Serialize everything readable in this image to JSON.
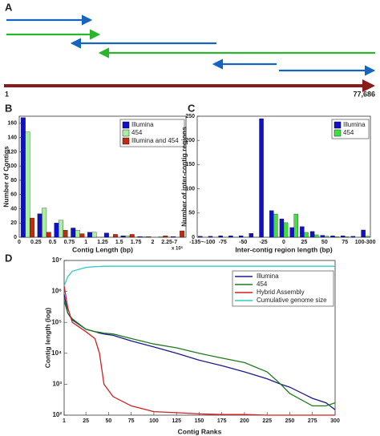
{
  "panel_a": {
    "letter": "A",
    "start_label": "1",
    "end_label": "77,686"
  },
  "chart_data": [
    {
      "type": "bar",
      "letter": "B",
      "x_label": "Contig Length (bp)",
      "y_label": "Number of Contigs",
      "x_multiplier": "x 10⁵",
      "categories": [
        "0",
        "0.25",
        "0.5",
        "0.75",
        "1",
        "1.25",
        "1.5",
        "1.75",
        "2",
        "2.25-7"
      ],
      "series": [
        {
          "name": "Illumina",
          "color": "#1010c8",
          "values": [
            168,
            33,
            20,
            13,
            7,
            6,
            2,
            1,
            0,
            1
          ]
        },
        {
          "name": "454",
          "color": "#a8f0a0",
          "values": [
            148,
            41,
            24,
            10,
            7,
            0,
            2,
            1,
            1,
            0
          ]
        },
        {
          "name": "Illumina and 454",
          "color": "#c02a10",
          "values": [
            27,
            7,
            10,
            5,
            0,
            4,
            4,
            1,
            2,
            9
          ]
        }
      ],
      "ylim": [
        0,
        170
      ],
      "yticks": [
        0,
        20,
        40,
        60,
        80,
        100,
        120,
        140,
        160
      ]
    },
    {
      "type": "bar",
      "letter": "C",
      "x_label": "Inter-contig region length (bp)",
      "y_label": "Number of inter-contig regions",
      "categories": [
        "-135~-100",
        null,
        "-75",
        null,
        "-50",
        null,
        "-25",
        null,
        "0",
        null,
        "25",
        null,
        "50",
        null,
        "75",
        null,
        "100-300"
      ],
      "series": [
        {
          "name": "Illumina",
          "color": "#1010c8",
          "values": [
            2,
            2,
            3,
            3,
            3,
            8,
            245,
            55,
            38,
            20,
            22,
            12,
            4,
            3,
            3,
            2,
            15
          ]
        },
        {
          "name": "454",
          "color": "#40e040",
          "values": [
            0,
            0,
            0,
            0,
            0,
            0,
            0,
            48,
            30,
            48,
            10,
            5,
            2,
            1,
            1,
            0,
            2
          ]
        }
      ],
      "ylim": [
        0,
        250
      ],
      "yticks": [
        0,
        50,
        100,
        150,
        200,
        250
      ]
    },
    {
      "type": "line",
      "letter": "D",
      "x_label": "Contig Ranks",
      "y_label": "Contig length (log)",
      "log_y": true,
      "x": [
        1,
        5,
        10,
        25,
        35,
        40,
        45,
        55,
        75,
        100,
        125,
        150,
        175,
        200,
        225,
        240,
        250,
        275,
        290,
        300
      ],
      "series": [
        {
          "name": "Illumina",
          "color": "#1a1a8c",
          "values": [
            800000,
            200000,
            120000,
            60000,
            50000,
            45000,
            42000,
            38000,
            25000,
            16000,
            10000,
            6000,
            4000,
            2500,
            1500,
            1000,
            800,
            350,
            250,
            150
          ]
        },
        {
          "name": "454",
          "color": "#1e7a1e",
          "values": [
            500000,
            200000,
            130000,
            60000,
            50000,
            48000,
            45000,
            42000,
            30000,
            20000,
            15000,
            10000,
            7000,
            5000,
            2500,
            1000,
            500,
            200,
            200,
            250
          ]
        },
        {
          "name": "Hybrid Assembly",
          "color": "#d02020",
          "values": [
            1500000,
            300000,
            100000,
            50000,
            30000,
            10000,
            1000,
            400,
            200,
            130,
            120,
            110,
            105,
            105,
            100,
            100,
            100,
            100,
            100,
            100
          ]
        },
        {
          "name": "Cumulative genome size",
          "color": "#30c8c8",
          "values": [
            1500000,
            3000000,
            4500000,
            6000000,
            6300000,
            6400000,
            6500000,
            6500000,
            6500000,
            6500000,
            6500000,
            6500000,
            6500000,
            6500000,
            6500000,
            6500000,
            6500000,
            6500000,
            6500000,
            6500000
          ]
        }
      ],
      "xlim": [
        1,
        300
      ],
      "xticks": [
        1,
        25,
        50,
        75,
        100,
        125,
        150,
        175,
        200,
        225,
        250,
        275,
        300
      ],
      "ylim": [
        100,
        10000000
      ],
      "yticks": [
        {
          "value": 100,
          "label": "10²"
        },
        {
          "value": 1000,
          "label": "10³"
        },
        {
          "value": 10000,
          "label": "10⁴"
        },
        {
          "value": 100000,
          "label": "10⁵"
        },
        {
          "value": 1000000,
          "label": "10⁶"
        },
        {
          "value": 10000000,
          "label": "10⁷"
        }
      ]
    }
  ]
}
